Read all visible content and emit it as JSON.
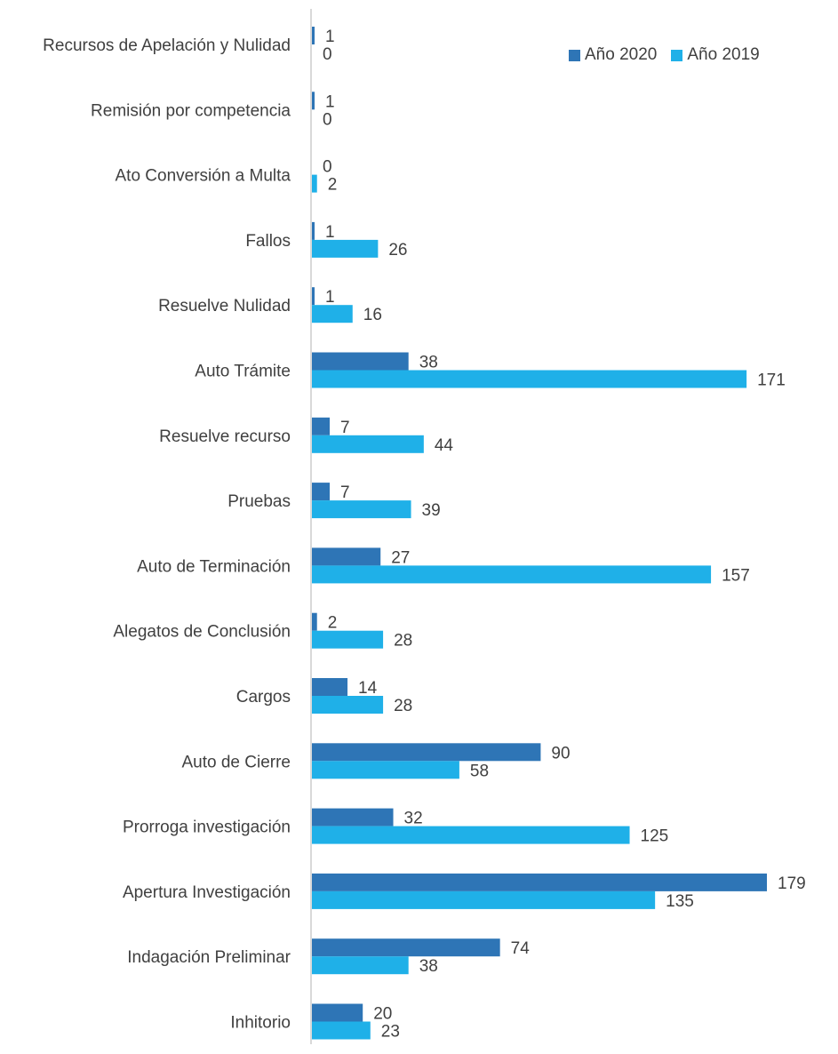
{
  "chart_data": {
    "type": "bar",
    "orientation": "horizontal",
    "categories": [
      "Recursos de Apelación y Nulidad",
      "Remisión por competencia",
      "Ato Conversión a Multa",
      "Fallos",
      "Resuelve Nulidad",
      "Auto Trámite",
      "Resuelve recurso",
      "Pruebas",
      "Auto de Terminación",
      "Alegatos de Conclusión",
      "Cargos",
      "Auto de Cierre",
      "Prorroga investigación",
      "Apertura Investigación",
      "Indagación Preliminar",
      "Inhitorio"
    ],
    "series": [
      {
        "name": "Año 2020",
        "color": "#2e75b6",
        "values": [
          1,
          1,
          0,
          1,
          1,
          38,
          7,
          7,
          27,
          2,
          14,
          90,
          32,
          179,
          74,
          20
        ]
      },
      {
        "name": "Año 2019",
        "color": "#1fb0e8",
        "values": [
          0,
          0,
          2,
          26,
          16,
          171,
          44,
          39,
          157,
          28,
          28,
          58,
          125,
          135,
          38,
          23
        ]
      }
    ],
    "xlim": [
      0,
      180
    ],
    "data_labels": true,
    "grid": false,
    "legend_position": "top-right",
    "axis_color": "#d9d9d9"
  }
}
